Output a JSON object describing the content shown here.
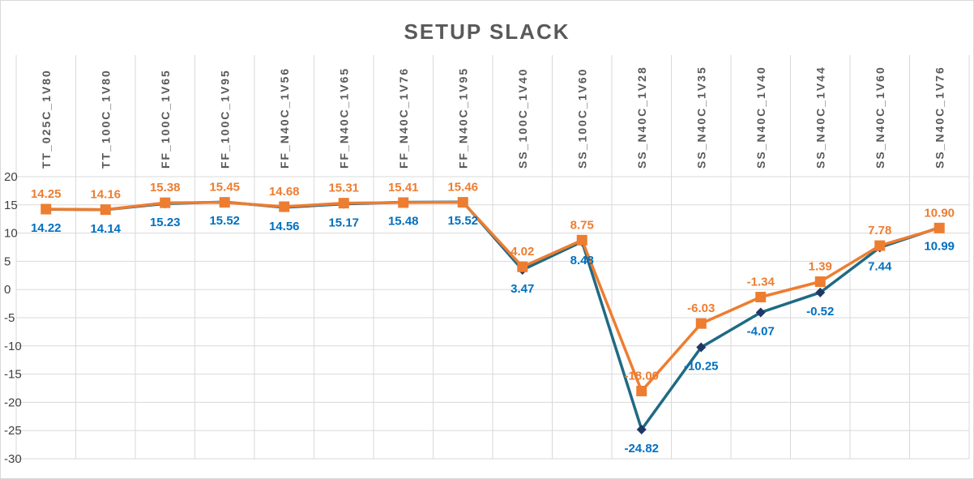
{
  "chart_data": {
    "type": "line",
    "title": "SETUP SLACK",
    "categories": [
      "TT_025C_1V80",
      "TT_100C_1V80",
      "FF_100C_1V65",
      "FF_100C_1V95",
      "FF_N40C_1V56",
      "FF_N40C_1V65",
      "FF_N40C_1V76",
      "FF_N40C_1V95",
      "SS_100C_1V40",
      "SS_100C_1V60",
      "SS_N40C_1V28",
      "SS_N40C_1V35",
      "SS_N40C_1V40",
      "SS_N40C_1V44",
      "SS_N40C_1V60",
      "SS_N40C_1V76"
    ],
    "series": [
      {
        "values": [
          14.22,
          14.14,
          15.23,
          15.52,
          14.56,
          15.17,
          15.48,
          15.52,
          3.47,
          8.48,
          -24.82,
          -10.25,
          -4.07,
          -0.52,
          7.44,
          10.99
        ],
        "line_color": "#1f6a84",
        "marker_color": "#1f3864",
        "label_color": "#0070c0",
        "marker": "diamond"
      },
      {
        "values": [
          14.25,
          14.16,
          15.38,
          15.45,
          14.68,
          15.31,
          15.41,
          15.46,
          4.02,
          8.75,
          -18.0,
          -6.03,
          -1.34,
          1.39,
          7.78,
          10.9
        ],
        "line_color": "#ed7d31",
        "marker_color": "#ed7d31",
        "label_color": "#ed7d31",
        "marker": "square"
      }
    ],
    "ylim": [
      -30,
      20
    ],
    "yticks": [
      20,
      15,
      10,
      5,
      0,
      -5,
      -10,
      -15,
      -20,
      -25,
      -30
    ],
    "grid": true,
    "legend": "none"
  }
}
